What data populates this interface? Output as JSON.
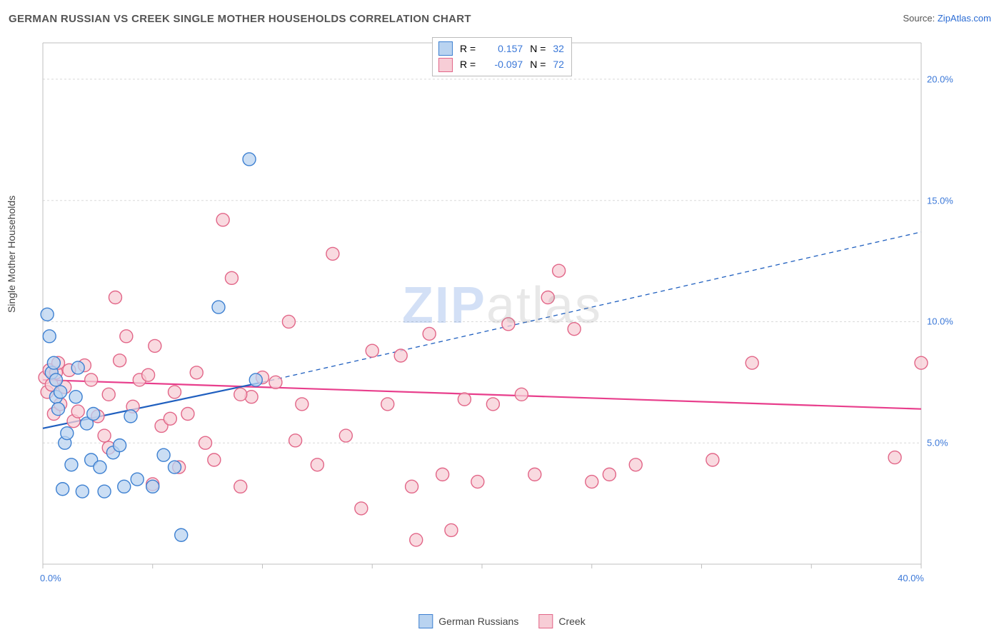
{
  "title": "GERMAN RUSSIAN VS CREEK SINGLE MOTHER HOUSEHOLDS CORRELATION CHART",
  "source_prefix": "Source: ",
  "source_link": "ZipAtlas.com",
  "ylabel": "Single Mother Households",
  "watermark_a": "ZIP",
  "watermark_b": "atlas",
  "chart": {
    "type": "scatter",
    "xlim": [
      0,
      40
    ],
    "ylim": [
      0,
      21.5
    ],
    "x_ticks": [
      0,
      5,
      10,
      15,
      20,
      25,
      30,
      35,
      40
    ],
    "x_tick_labels": {
      "0": "0.0%",
      "40": "40.0%"
    },
    "y_ticks": [
      5,
      10,
      15,
      20
    ],
    "y_tick_labels": {
      "5": "5.0%",
      "10": "10.0%",
      "15": "15.0%",
      "20": "20.0%"
    },
    "grid_color": "#d9d9d9",
    "axis_color": "#bfbfbf",
    "marker_radius": 9,
    "marker_stroke_width": 1.4,
    "trend_line_width": 2.2,
    "dash_pattern": "6 5",
    "series": {
      "german_russians": {
        "label": "German Russians",
        "fill": "#b9d3f0",
        "stroke": "#3d80d1",
        "trend_color": "#1f5fbf",
        "R": "0.157",
        "N": "32",
        "trend": {
          "x1": 0,
          "y1": 5.6,
          "x2": 10,
          "y2": 7.5,
          "x2_dash": 40,
          "y2_dash": 13.7
        },
        "points": [
          [
            0.2,
            10.3
          ],
          [
            0.3,
            9.4
          ],
          [
            0.4,
            7.9
          ],
          [
            0.5,
            8.3
          ],
          [
            0.6,
            7.6
          ],
          [
            0.6,
            6.9
          ],
          [
            0.7,
            6.4
          ],
          [
            0.8,
            7.1
          ],
          [
            0.9,
            3.1
          ],
          [
            1.0,
            5.0
          ],
          [
            1.1,
            5.4
          ],
          [
            1.3,
            4.1
          ],
          [
            1.5,
            6.9
          ],
          [
            1.6,
            8.1
          ],
          [
            1.8,
            3.0
          ],
          [
            2.0,
            5.8
          ],
          [
            2.2,
            4.3
          ],
          [
            2.3,
            6.2
          ],
          [
            2.6,
            4.0
          ],
          [
            2.8,
            3.0
          ],
          [
            3.2,
            4.6
          ],
          [
            3.5,
            4.9
          ],
          [
            3.7,
            3.2
          ],
          [
            4.0,
            6.1
          ],
          [
            4.3,
            3.5
          ],
          [
            5.0,
            3.2
          ],
          [
            5.5,
            4.5
          ],
          [
            6.0,
            4.0
          ],
          [
            6.3,
            1.2
          ],
          [
            8.0,
            10.6
          ],
          [
            9.4,
            16.7
          ],
          [
            9.7,
            7.6
          ]
        ]
      },
      "creek": {
        "label": "Creek",
        "fill": "#f7cdd6",
        "stroke": "#e26688",
        "trend_color": "#e83e8c",
        "R": "-0.097",
        "N": "72",
        "trend": {
          "x1": 0,
          "y1": 7.6,
          "x2": 40,
          "y2": 6.4
        },
        "points": [
          [
            0.1,
            7.7
          ],
          [
            0.2,
            7.1
          ],
          [
            0.3,
            8.0
          ],
          [
            0.4,
            7.4
          ],
          [
            0.5,
            6.2
          ],
          [
            0.6,
            7.9
          ],
          [
            0.7,
            8.3
          ],
          [
            0.8,
            6.6
          ],
          [
            1.0,
            7.3
          ],
          [
            1.2,
            8.0
          ],
          [
            1.4,
            5.9
          ],
          [
            1.6,
            6.3
          ],
          [
            1.9,
            8.2
          ],
          [
            2.2,
            7.6
          ],
          [
            2.5,
            6.1
          ],
          [
            2.8,
            5.3
          ],
          [
            3.0,
            7.0
          ],
          [
            3.3,
            11.0
          ],
          [
            3.5,
            8.4
          ],
          [
            3.8,
            9.4
          ],
          [
            4.1,
            6.5
          ],
          [
            4.4,
            7.6
          ],
          [
            4.8,
            7.8
          ],
          [
            5.1,
            9.0
          ],
          [
            5.4,
            5.7
          ],
          [
            5.8,
            6.0
          ],
          [
            6.2,
            4.0
          ],
          [
            6.6,
            6.2
          ],
          [
            7.0,
            7.9
          ],
          [
            7.4,
            5.0
          ],
          [
            7.8,
            4.3
          ],
          [
            8.2,
            14.2
          ],
          [
            8.6,
            11.8
          ],
          [
            9.0,
            3.2
          ],
          [
            9.5,
            6.9
          ],
          [
            10.0,
            7.7
          ],
          [
            10.6,
            7.5
          ],
          [
            11.2,
            10.0
          ],
          [
            11.8,
            6.6
          ],
          [
            12.5,
            4.1
          ],
          [
            13.2,
            12.8
          ],
          [
            13.8,
            5.3
          ],
          [
            14.5,
            2.3
          ],
          [
            15.0,
            8.8
          ],
          [
            15.7,
            6.6
          ],
          [
            16.3,
            8.6
          ],
          [
            16.8,
            3.2
          ],
          [
            17.0,
            1.0
          ],
          [
            17.6,
            9.5
          ],
          [
            18.2,
            3.7
          ],
          [
            18.6,
            1.4
          ],
          [
            19.2,
            6.8
          ],
          [
            19.8,
            3.4
          ],
          [
            20.5,
            6.6
          ],
          [
            21.2,
            9.9
          ],
          [
            21.8,
            7.0
          ],
          [
            22.4,
            3.7
          ],
          [
            23.0,
            11.0
          ],
          [
            23.5,
            12.1
          ],
          [
            24.2,
            9.7
          ],
          [
            25.0,
            3.4
          ],
          [
            25.8,
            3.7
          ],
          [
            27.0,
            4.1
          ],
          [
            30.5,
            4.3
          ],
          [
            32.3,
            8.3
          ],
          [
            38.8,
            4.4
          ],
          [
            40.0,
            8.3
          ],
          [
            5.0,
            3.3
          ],
          [
            6.0,
            7.1
          ],
          [
            9.0,
            7.0
          ],
          [
            11.5,
            5.1
          ],
          [
            3.0,
            4.8
          ]
        ]
      }
    }
  },
  "legend_inset": {
    "r_label": "R =",
    "n_label": "N ="
  }
}
